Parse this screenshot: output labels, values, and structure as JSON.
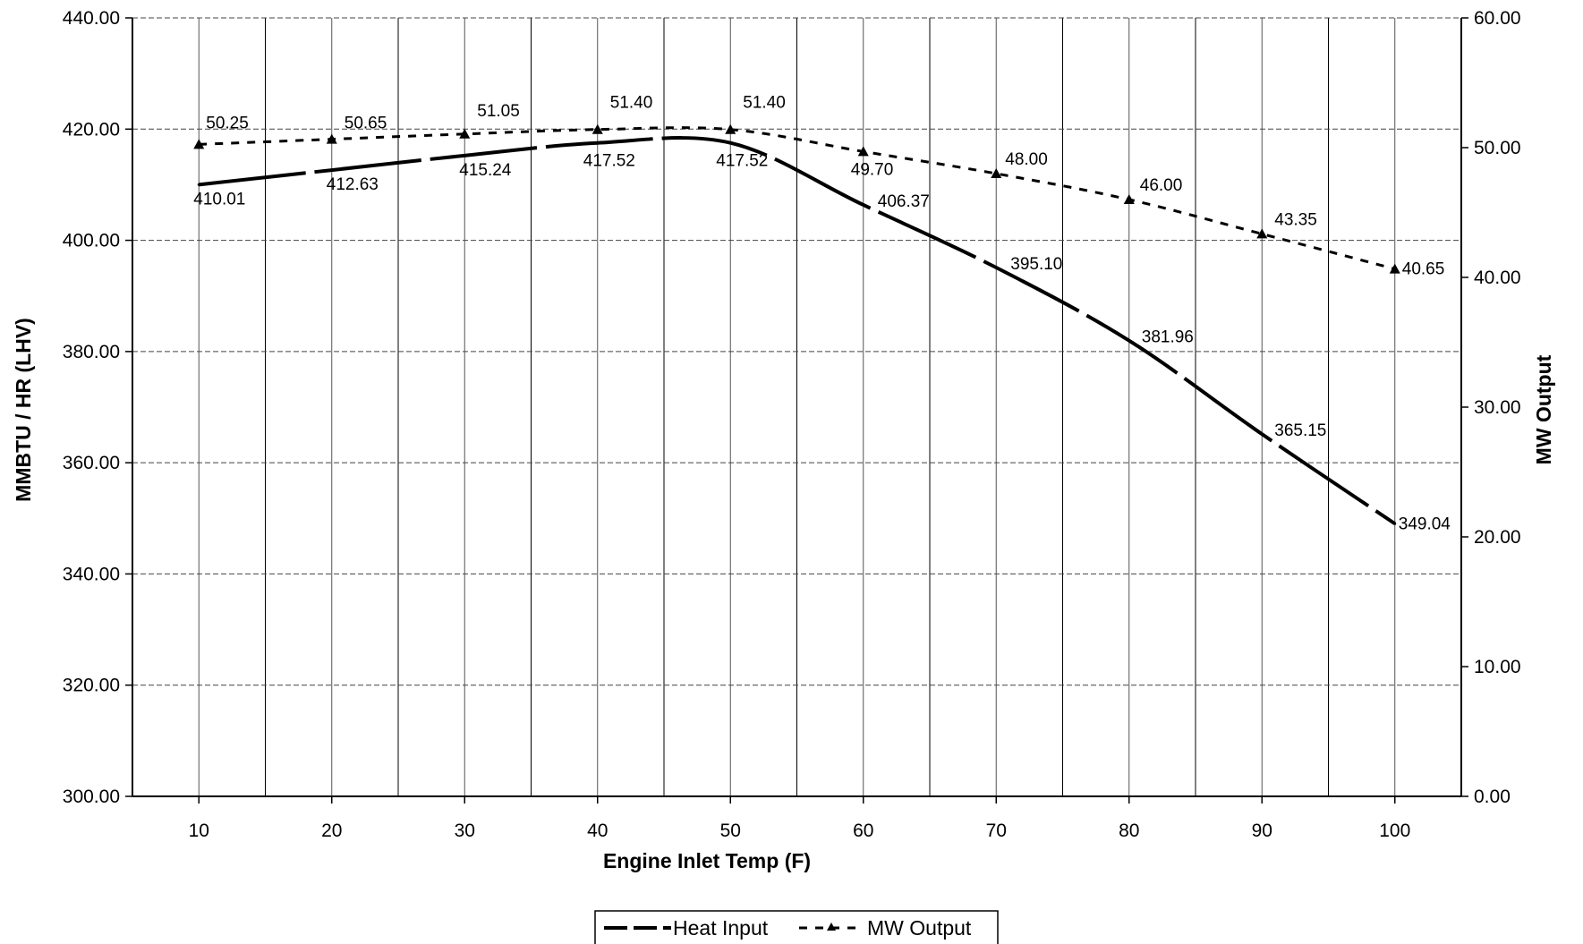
{
  "chart_data": {
    "type": "line",
    "x": [
      10,
      20,
      30,
      40,
      50,
      60,
      70,
      80,
      90,
      100
    ],
    "x_ticks": [
      "10",
      "20",
      "30",
      "40",
      "50",
      "60",
      "70",
      "80",
      "90",
      "100"
    ],
    "xlabel": "Engine Inlet Temp (F)",
    "xlim": [
      5,
      105
    ],
    "ylabel": "MMBTU / HR (LHV)",
    "ylim": [
      300,
      440
    ],
    "y_ticks": [
      "300.00",
      "320.00",
      "340.00",
      "360.00",
      "380.00",
      "400.00",
      "420.00",
      "440.00"
    ],
    "y2label": "MW Output",
    "y2lim": [
      0,
      60
    ],
    "y2_ticks": [
      "0.00",
      "10.00",
      "20.00",
      "30.00",
      "40.00",
      "50.00",
      "60.00"
    ],
    "grid": true,
    "legend_position": "bottom-center",
    "series": [
      {
        "name": "Heat Input",
        "axis": "left",
        "style": "long-dash solid",
        "values": [
          410.01,
          412.63,
          415.24,
          417.52,
          417.52,
          406.37,
          395.1,
          381.96,
          365.15,
          349.04
        ],
        "labels": [
          "410.01",
          "412.63",
          "415.24",
          "417.52",
          "417.52",
          "406.37",
          "395.10",
          "381.96",
          "365.15",
          "349.04"
        ]
      },
      {
        "name": "MW Output",
        "axis": "right",
        "style": "short-dash with triangle markers",
        "values": [
          50.25,
          50.65,
          51.05,
          51.4,
          51.4,
          49.7,
          48.0,
          46.0,
          43.35,
          40.65
        ],
        "labels": [
          "50.25",
          "50.65",
          "51.05",
          "51.40",
          "51.40",
          "49.70",
          "48.00",
          "46.00",
          "43.35",
          "40.65"
        ]
      }
    ]
  }
}
